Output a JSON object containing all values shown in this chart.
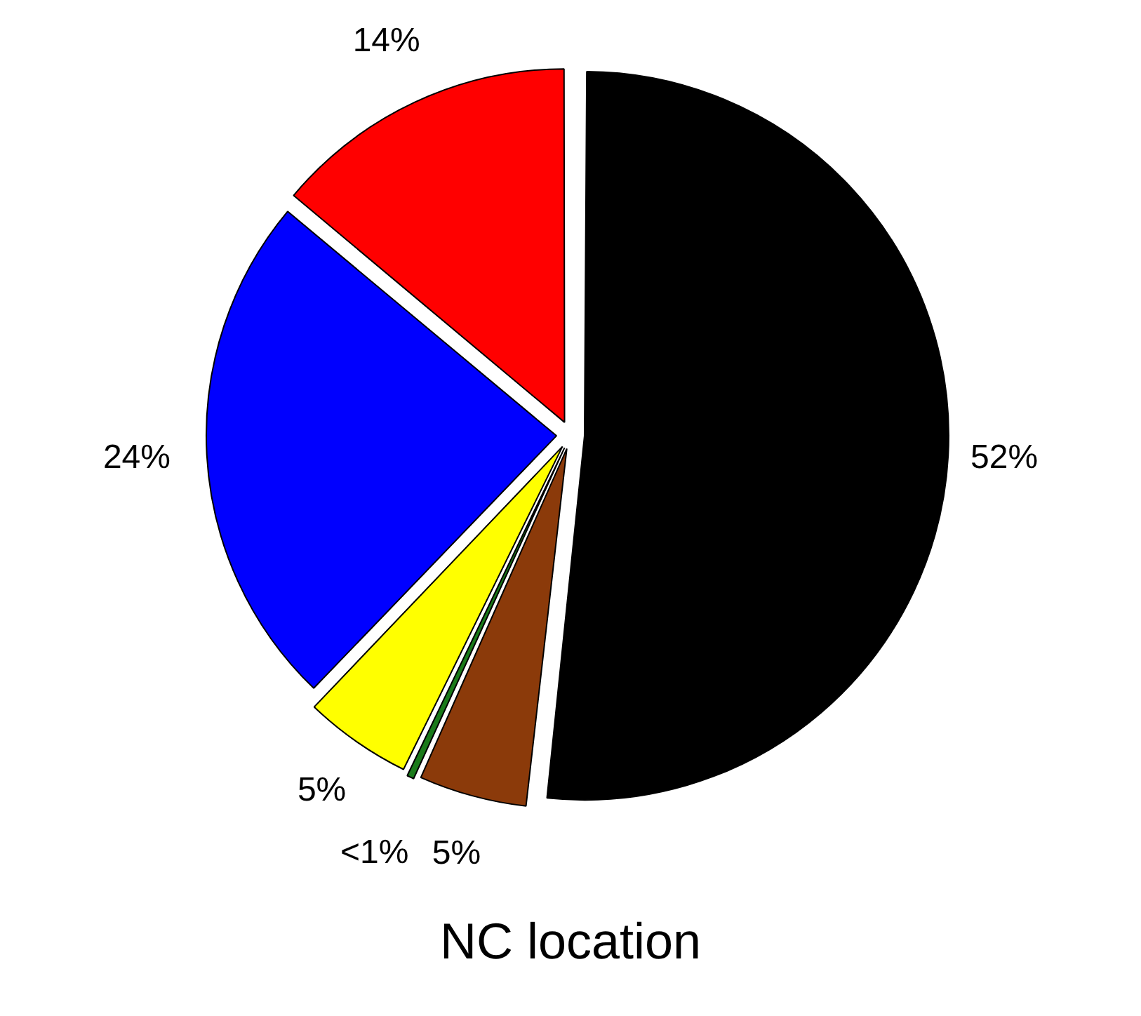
{
  "chart_data": {
    "type": "pie",
    "title": "NC location",
    "categories": [
      null,
      null,
      null,
      null,
      null,
      null
    ],
    "values": [
      52,
      5,
      0.5,
      5,
      24,
      14
    ],
    "colors": [
      "#000000",
      "#8b3a0a",
      "#1a7a1a",
      "#ffff00",
      "#0000ff",
      "#ff0000"
    ],
    "value_labels": [
      "52%",
      "5%",
      "<1%",
      "5%",
      "24%",
      "14%"
    ],
    "legend": false
  }
}
